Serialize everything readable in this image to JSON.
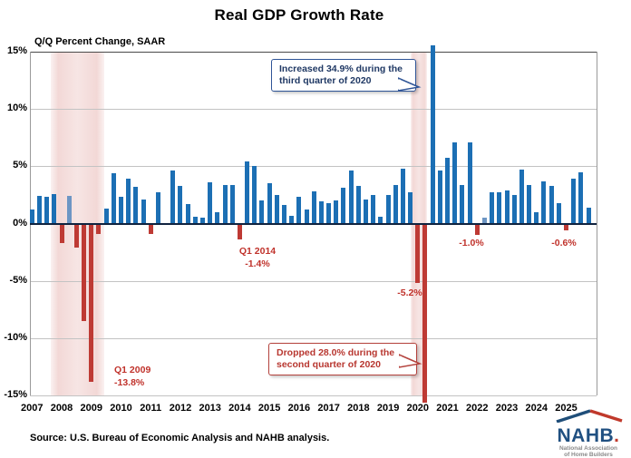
{
  "title": "Real GDP Growth Rate",
  "axis_note": "Q/Q Percent Change, SAAR",
  "source": "Source: U.S. Bureau of Economic Analysis and NAHB analysis.",
  "colors": {
    "bar_blue": "#1c6fb4",
    "bar_blue_light": "#6d96c4",
    "bar_red": "#be3a34",
    "zero_line": "#10233f",
    "annotation_blue": "#1f3864",
    "annotation_red": "#b83730",
    "recession_band_pink": "#f6e2e1"
  },
  "chart_data": {
    "type": "bar",
    "title": "Real GDP Growth Rate",
    "ylabel": "Q/Q Percent Change, SAAR",
    "ylim": [
      -15,
      15
    ],
    "y_ticks": [
      "15%",
      "10%",
      "5%",
      "0%",
      "-5%",
      "-10%",
      "-15%"
    ],
    "y_tick_values": [
      15,
      10,
      5,
      0,
      -5,
      -10,
      -15
    ],
    "x_labels": [
      "2007",
      "2008",
      "2009",
      "2010",
      "2011",
      "2012",
      "2013",
      "2014",
      "2015",
      "2016",
      "2017",
      "2018",
      "2019",
      "2020",
      "2021",
      "2022",
      "2023",
      "2024",
      "2025"
    ],
    "quarters_start": "2007Q1",
    "series": [
      {
        "name": "Real GDP growth rate (Q/Q % change, SAAR)",
        "values": [
          1.2,
          2.4,
          2.3,
          2.6,
          -1.7,
          2.4,
          -2.1,
          -8.5,
          -13.8,
          -0.9,
          1.3,
          4.4,
          2.3,
          3.9,
          3.2,
          2.1,
          -0.9,
          2.7,
          -0.1,
          4.6,
          3.3,
          1.7,
          0.6,
          0.5,
          3.6,
          1.0,
          3.4,
          3.4,
          -1.4,
          5.4,
          5.0,
          2.0,
          3.5,
          2.5,
          1.6,
          0.7,
          2.3,
          1.2,
          2.8,
          1.9,
          1.8,
          2.0,
          3.1,
          4.6,
          3.3,
          2.1,
          2.5,
          0.6,
          2.5,
          3.4,
          4.8,
          2.7,
          -5.2,
          -28.0,
          34.9,
          4.6,
          5.7,
          7.1,
          3.4,
          7.1,
          -1.0,
          0.5,
          2.7,
          2.7,
          2.9,
          2.5,
          4.7,
          3.4,
          1.0,
          3.7,
          3.3,
          1.8,
          -0.6,
          3.9,
          4.5,
          1.4
        ]
      }
    ],
    "light_blue_indices": [
      5,
      61
    ],
    "recession_bands_quarter_index": [
      {
        "start": 2.8,
        "end": 10.0
      },
      {
        "start": 51.4,
        "end": 53.5
      }
    ],
    "grid": true,
    "legend": "none"
  },
  "annotations": {
    "increase": {
      "line1": "Increased 34.9% during the",
      "line2": "third quarter of 2020"
    },
    "drop": {
      "line1": "Dropped 28.0% during the",
      "line2": "second quarter of 2020"
    },
    "q1_2009": {
      "line1": "Q1 2009",
      "line2": "-13.8%"
    },
    "q1_2014": {
      "line1": "Q1 2014",
      "line2": "-1.4%"
    },
    "neg_5_2": "-5.2%",
    "neg_1_0": "-1.0%",
    "neg_0_6": "-0.6%"
  },
  "logo": {
    "name_main": "NAHB",
    "name_dot": ".",
    "sub1": "National Association",
    "sub2": "of Home Builders"
  }
}
